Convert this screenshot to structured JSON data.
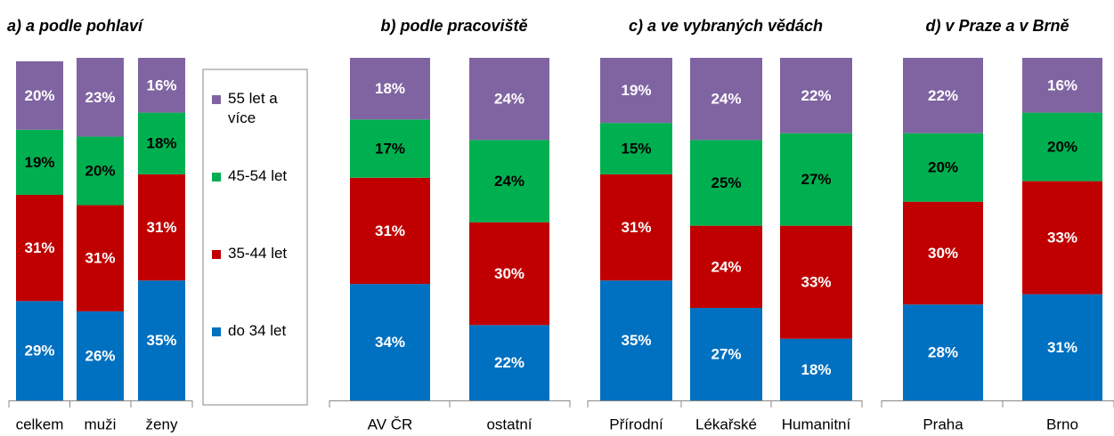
{
  "chart_data": [
    {
      "type": "bar",
      "stacked": true,
      "title": "a) a podle pohlaví",
      "ylim": [
        0,
        100
      ],
      "categories": [
        "celkem",
        "muži",
        "ženy"
      ],
      "series": [
        {
          "name": "do 34 let",
          "color": "#0070c0",
          "values": [
            29,
            26,
            35
          ],
          "value_labels": [
            "29%",
            "26%",
            "35%"
          ]
        },
        {
          "name": "35-44 let",
          "color": "#c00000",
          "values": [
            31,
            31,
            31
          ],
          "value_labels": [
            "31%",
            "31%",
            "31%"
          ]
        },
        {
          "name": "45-54 let",
          "color": "#00b050",
          "values": [
            19,
            20,
            18
          ],
          "value_labels": [
            "19%",
            "20%",
            "18%"
          ]
        },
        {
          "name": "55 let a více",
          "color": "#8064a2",
          "values": [
            20,
            23,
            16
          ],
          "value_labels": [
            "20%",
            "23%",
            "16%"
          ]
        }
      ]
    },
    {
      "type": "bar",
      "stacked": true,
      "title": "b) podle pracoviště",
      "ylim": [
        0,
        100
      ],
      "categories": [
        "AV ČR",
        "ostatní"
      ],
      "series": [
        {
          "values": [
            34,
            22
          ],
          "value_labels": [
            "34%",
            "22%"
          ]
        },
        {
          "values": [
            31,
            30
          ],
          "value_labels": [
            "31%",
            "30%"
          ]
        },
        {
          "values": [
            17,
            24
          ],
          "value_labels": [
            "17%",
            "24%"
          ]
        },
        {
          "values": [
            18,
            24
          ],
          "value_labels": [
            "18%",
            "24%"
          ]
        }
      ]
    },
    {
      "type": "bar",
      "stacked": true,
      "title": "c) a ve vybraných vědách",
      "ylim": [
        0,
        100
      ],
      "categories": [
        "Přírodní",
        "Lékařské",
        "Humanitní"
      ],
      "series": [
        {
          "values": [
            35,
            27,
            18
          ],
          "value_labels": [
            "35%",
            "27%",
            "18%"
          ]
        },
        {
          "values": [
            31,
            24,
            33
          ],
          "value_labels": [
            "31%",
            "24%",
            "33%"
          ]
        },
        {
          "values": [
            15,
            25,
            27
          ],
          "value_labels": [
            "15%",
            "25%",
            "27%"
          ]
        },
        {
          "values": [
            19,
            24,
            22
          ],
          "value_labels": [
            "19%",
            "24%",
            "22%"
          ]
        }
      ]
    },
    {
      "type": "bar",
      "stacked": true,
      "title": "d) v Praze a v Brně",
      "ylim": [
        0,
        100
      ],
      "categories": [
        "Praha",
        "Brno"
      ],
      "series": [
        {
          "values": [
            28,
            31
          ],
          "value_labels": [
            "28%",
            "31%"
          ]
        },
        {
          "values": [
            30,
            33
          ],
          "value_labels": [
            "30%",
            "33%"
          ]
        },
        {
          "values": [
            20,
            20
          ],
          "value_labels": [
            "20%",
            "20%"
          ]
        },
        {
          "values": [
            22,
            16
          ],
          "value_labels": [
            "22%",
            "16%"
          ]
        }
      ]
    }
  ]
}
